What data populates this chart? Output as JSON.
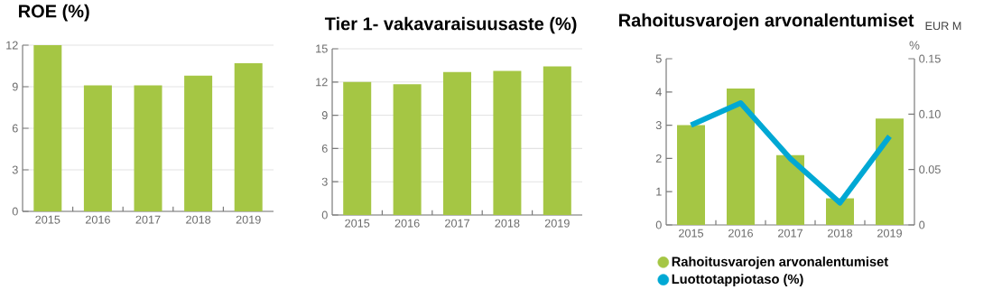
{
  "chart_data": [
    {
      "type": "bar",
      "title": "ROE (%)",
      "categories": [
        "2015",
        "2016",
        "2017",
        "2018",
        "2019"
      ],
      "values": [
        12.0,
        9.1,
        9.1,
        9.8,
        10.7
      ],
      "color": "#a5c644",
      "ylim": [
        0,
        12
      ],
      "yticks": [
        0,
        3,
        6,
        9,
        12
      ],
      "grid": "y"
    },
    {
      "type": "bar",
      "title": "Tier 1- vakavaraisuusaste (%)",
      "categories": [
        "2015",
        "2016",
        "2017",
        "2018",
        "2019"
      ],
      "values": [
        12.0,
        11.8,
        12.9,
        13.0,
        13.4
      ],
      "color": "#a5c644",
      "ylim": [
        0,
        15
      ],
      "yticks": [
        0,
        3,
        6,
        9,
        12,
        15
      ],
      "grid": "y"
    },
    {
      "type": "bar",
      "title": "Rahoitusvarojen arvonalentumiset",
      "subtitle": "EUR M",
      "y2label": "%",
      "categories": [
        "2015",
        "2016",
        "2017",
        "2018",
        "2019"
      ],
      "series": [
        {
          "name": "Rahoitusvarojen arvonalentumiset",
          "type": "bar",
          "color": "#a5c644",
          "values": [
            3.0,
            4.1,
            2.1,
            0.8,
            3.2
          ]
        },
        {
          "name": "Luottotappiotaso (%)",
          "type": "line",
          "axis": "y2",
          "color": "#00a8d4",
          "values": [
            0.09,
            0.11,
            0.06,
            0.02,
            0.08
          ]
        }
      ],
      "ylim": [
        0,
        5
      ],
      "yticks": [
        0,
        1,
        2,
        3,
        4,
        5
      ],
      "y2lim": [
        0,
        0.15
      ],
      "y2ticks": [
        0,
        {
          "value": 0.05,
          "label": "0.05"
        },
        {
          "value": 0.1,
          "label": "0.10"
        },
        {
          "value": 0.15,
          "label": "0.15"
        }
      ],
      "grid": false,
      "legend": "bottom"
    }
  ]
}
